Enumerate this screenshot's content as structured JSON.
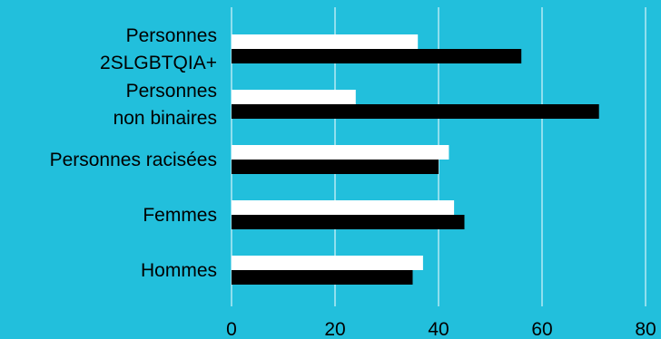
{
  "chart_data": {
    "type": "bar",
    "orientation": "horizontal",
    "categories": [
      [
        "Personnes",
        "2SLGBTQIA+"
      ],
      [
        "Personnes",
        "non binaires"
      ],
      [
        "Personnes racisées"
      ],
      [
        "Femmes"
      ],
      [
        "Hommes"
      ]
    ],
    "series": [
      {
        "values": [
          36,
          24,
          42,
          43,
          37
        ]
      },
      {
        "values": [
          56,
          71,
          40,
          45,
          35
        ]
      }
    ],
    "xlim": [
      0,
      80
    ],
    "xticks": [
      "0",
      "20",
      "40",
      "60",
      "80"
    ],
    "grid": "vertical",
    "legend": "none",
    "colors": {
      "background": "#22BFDC",
      "series": [
        "#FFFFFF",
        "#000000"
      ],
      "grid": "#FFFFFF",
      "text": "#000000"
    }
  }
}
